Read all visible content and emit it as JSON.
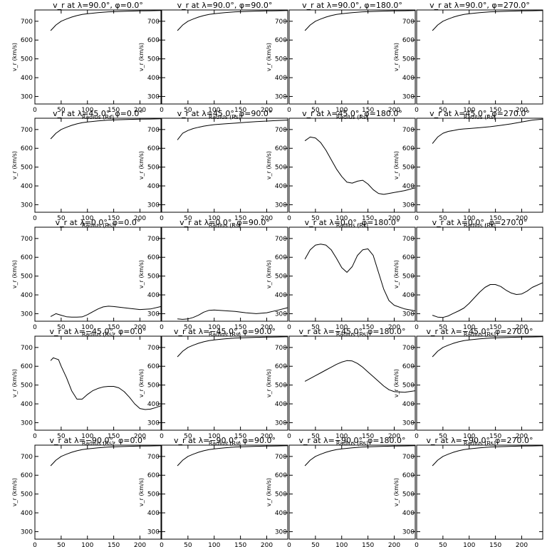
{
  "chart_data": {
    "type": "line",
    "layout": "grid 5 rows x 4 columns",
    "xlabel": "Radius (Rs)",
    "ylabel": "v_r (km/s)",
    "xlim": [
      0,
      240
    ],
    "ylim": [
      260,
      760
    ],
    "xticks": [
      0,
      50,
      100,
      150,
      200
    ],
    "yticks": [
      300,
      400,
      500,
      600,
      700
    ],
    "line_color": "#000000",
    "panels": [
      {
        "title": "v_r at λ=90.0°, φ=0.0°",
        "x": [
          30,
          35,
          40,
          50,
          60,
          70,
          80,
          90,
          100,
          120,
          140,
          160,
          180,
          200,
          220,
          240
        ],
        "y": [
          650,
          665,
          680,
          700,
          712,
          722,
          730,
          736,
          740,
          746,
          750,
          752,
          754,
          755,
          756,
          757
        ]
      },
      {
        "title": "v_r at λ=90.0°, φ=90.0°",
        "x": [
          30,
          35,
          40,
          50,
          60,
          70,
          80,
          90,
          100,
          120,
          140,
          160,
          180,
          200,
          220,
          240
        ],
        "y": [
          650,
          665,
          680,
          700,
          712,
          722,
          730,
          736,
          740,
          746,
          750,
          752,
          754,
          755,
          756,
          757
        ]
      },
      {
        "title": "v_r at λ=90.0°, φ=180.0°",
        "x": [
          30,
          35,
          40,
          50,
          60,
          70,
          80,
          90,
          100,
          120,
          140,
          160,
          180,
          200,
          220,
          240
        ],
        "y": [
          650,
          665,
          680,
          700,
          712,
          722,
          730,
          736,
          740,
          746,
          750,
          752,
          754,
          755,
          756,
          757
        ]
      },
      {
        "title": "v_r at λ=90.0°, φ=270.0°",
        "x": [
          30,
          35,
          40,
          50,
          60,
          70,
          80,
          90,
          100,
          120,
          140,
          160,
          180,
          200,
          220,
          240
        ],
        "y": [
          650,
          665,
          680,
          700,
          712,
          722,
          730,
          736,
          740,
          746,
          750,
          752,
          754,
          755,
          756,
          757
        ]
      },
      {
        "title": "v_r at λ=45.0°, φ=0.0°",
        "x": [
          30,
          35,
          40,
          50,
          60,
          70,
          80,
          90,
          100,
          120,
          140,
          160,
          180,
          200,
          220,
          240
        ],
        "y": [
          650,
          665,
          680,
          700,
          712,
          722,
          730,
          736,
          740,
          746,
          750,
          752,
          754,
          755,
          756,
          757
        ]
      },
      {
        "title": "v_r at λ=45.0°, φ=90.0°",
        "x": [
          30,
          40,
          50,
          60,
          70,
          80,
          90,
          100,
          120,
          140,
          160,
          180,
          200,
          220,
          240
        ],
        "y": [
          645,
          680,
          695,
          705,
          712,
          718,
          722,
          726,
          730,
          734,
          738,
          742,
          745,
          748,
          750
        ]
      },
      {
        "title": "v_r at λ=45.0°, φ=180.0°",
        "x": [
          30,
          40,
          50,
          60,
          70,
          80,
          90,
          100,
          110,
          120,
          130,
          140,
          150,
          160,
          170,
          180,
          190,
          200,
          220,
          240
        ],
        "y": [
          640,
          660,
          655,
          630,
          590,
          540,
          490,
          450,
          420,
          415,
          425,
          430,
          410,
          380,
          360,
          355,
          360,
          365,
          375,
          390
        ]
      },
      {
        "title": "v_r at λ=45.0°, φ=270.0°",
        "x": [
          30,
          40,
          50,
          60,
          70,
          80,
          90,
          100,
          120,
          140,
          160,
          180,
          200,
          220,
          240
        ],
        "y": [
          625,
          660,
          680,
          690,
          695,
          700,
          703,
          705,
          710,
          715,
          722,
          730,
          740,
          750,
          755
        ]
      },
      {
        "title": "v_r at λ=0.0°, φ=0.0°",
        "x": [
          30,
          40,
          50,
          60,
          70,
          80,
          90,
          100,
          110,
          120,
          130,
          140,
          150,
          160,
          180,
          200,
          220,
          240
        ],
        "y": [
          285,
          300,
          292,
          284,
          282,
          282,
          283,
          295,
          310,
          325,
          336,
          340,
          338,
          335,
          328,
          322,
          325,
          338
        ]
      },
      {
        "title": "v_r at λ=0.0°, φ=90.0°",
        "x": [
          30,
          40,
          50,
          60,
          70,
          80,
          90,
          100,
          110,
          120,
          140,
          160,
          180,
          200,
          220,
          240
        ],
        "y": [
          272,
          270,
          272,
          280,
          292,
          308,
          318,
          320,
          318,
          316,
          312,
          305,
          300,
          305,
          318,
          332
        ]
      },
      {
        "title": "v_r at λ=0.0°, φ=180.0°",
        "x": [
          30,
          40,
          50,
          60,
          70,
          80,
          90,
          100,
          110,
          120,
          130,
          140,
          150,
          160,
          170,
          180,
          190,
          200,
          220,
          240
        ],
        "y": [
          590,
          640,
          665,
          670,
          665,
          640,
          595,
          545,
          520,
          550,
          610,
          640,
          645,
          610,
          520,
          430,
          370,
          345,
          325,
          315
        ]
      },
      {
        "title": "v_r at λ=0.0°, φ=270.0°",
        "x": [
          30,
          40,
          50,
          60,
          70,
          80,
          90,
          100,
          110,
          120,
          130,
          140,
          150,
          160,
          170,
          180,
          190,
          200,
          210,
          220,
          240
        ],
        "y": [
          292,
          282,
          280,
          288,
          302,
          315,
          330,
          355,
          385,
          415,
          440,
          455,
          455,
          445,
          425,
          410,
          402,
          405,
          420,
          440,
          465
        ]
      },
      {
        "title": "v_r at λ=−45.0°, φ=0.0°",
        "x": [
          30,
          35,
          40,
          45,
          50,
          60,
          70,
          80,
          90,
          100,
          110,
          120,
          130,
          140,
          150,
          160,
          170,
          180,
          190,
          200,
          210,
          220,
          230,
          240
        ],
        "y": [
          630,
          645,
          640,
          635,
          600,
          540,
          470,
          425,
          425,
          450,
          470,
          482,
          490,
          493,
          493,
          485,
          465,
          435,
          400,
          375,
          370,
          372,
          380,
          390
        ]
      },
      {
        "title": "v_r at λ=−45.0°, φ=90.0°",
        "x": [
          30,
          35,
          40,
          50,
          60,
          70,
          80,
          90,
          100,
          120,
          140,
          160,
          180,
          200,
          220,
          240
        ],
        "y": [
          650,
          665,
          680,
          700,
          712,
          722,
          730,
          736,
          740,
          746,
          750,
          752,
          754,
          755,
          756,
          757
        ]
      },
      {
        "title": "v_r at λ=−45.0°, φ=180.0°",
        "x": [
          30,
          40,
          50,
          60,
          70,
          80,
          90,
          100,
          110,
          120,
          130,
          140,
          150,
          160,
          170,
          180,
          190,
          200,
          220,
          240
        ],
        "y": [
          520,
          535,
          550,
          565,
          580,
          595,
          610,
          622,
          630,
          628,
          615,
          595,
          570,
          545,
          520,
          495,
          475,
          465,
          462,
          470
        ]
      },
      {
        "title": "v_r at λ=−45.0°, φ=270.0°",
        "x": [
          30,
          35,
          40,
          50,
          60,
          70,
          80,
          90,
          100,
          120,
          140,
          160,
          180,
          200,
          220,
          240
        ],
        "y": [
          650,
          665,
          680,
          700,
          712,
          722,
          730,
          736,
          740,
          746,
          750,
          752,
          754,
          755,
          756,
          757
        ]
      },
      {
        "title": "v_r at λ=−90.0°, φ=0.0°",
        "x": [
          30,
          35,
          40,
          50,
          60,
          70,
          80,
          90,
          100,
          120,
          140,
          160,
          180,
          200,
          220,
          240
        ],
        "y": [
          650,
          665,
          680,
          700,
          712,
          722,
          730,
          736,
          740,
          746,
          750,
          752,
          754,
          755,
          756,
          757
        ]
      },
      {
        "title": "v_r at λ=−90.0°, φ=90.0°",
        "x": [
          30,
          35,
          40,
          50,
          60,
          70,
          80,
          90,
          100,
          120,
          140,
          160,
          180,
          200,
          220,
          240
        ],
        "y": [
          650,
          665,
          680,
          700,
          712,
          722,
          730,
          736,
          740,
          746,
          750,
          752,
          754,
          755,
          756,
          757
        ]
      },
      {
        "title": "v_r at λ=−90.0°, φ=180.0°",
        "x": [
          30,
          35,
          40,
          50,
          60,
          70,
          80,
          90,
          100,
          120,
          140,
          160,
          180,
          200,
          220,
          240
        ],
        "y": [
          650,
          665,
          680,
          700,
          712,
          722,
          730,
          736,
          740,
          746,
          750,
          752,
          754,
          755,
          756,
          757
        ]
      },
      {
        "title": "v_r at λ=−90.0°, φ=270.0°",
        "x": [
          30,
          35,
          40,
          50,
          60,
          70,
          80,
          90,
          100,
          120,
          140,
          160,
          180,
          200,
          220,
          240
        ],
        "y": [
          650,
          665,
          680,
          700,
          712,
          722,
          730,
          736,
          740,
          746,
          750,
          752,
          754,
          755,
          756,
          757
        ]
      }
    ]
  }
}
